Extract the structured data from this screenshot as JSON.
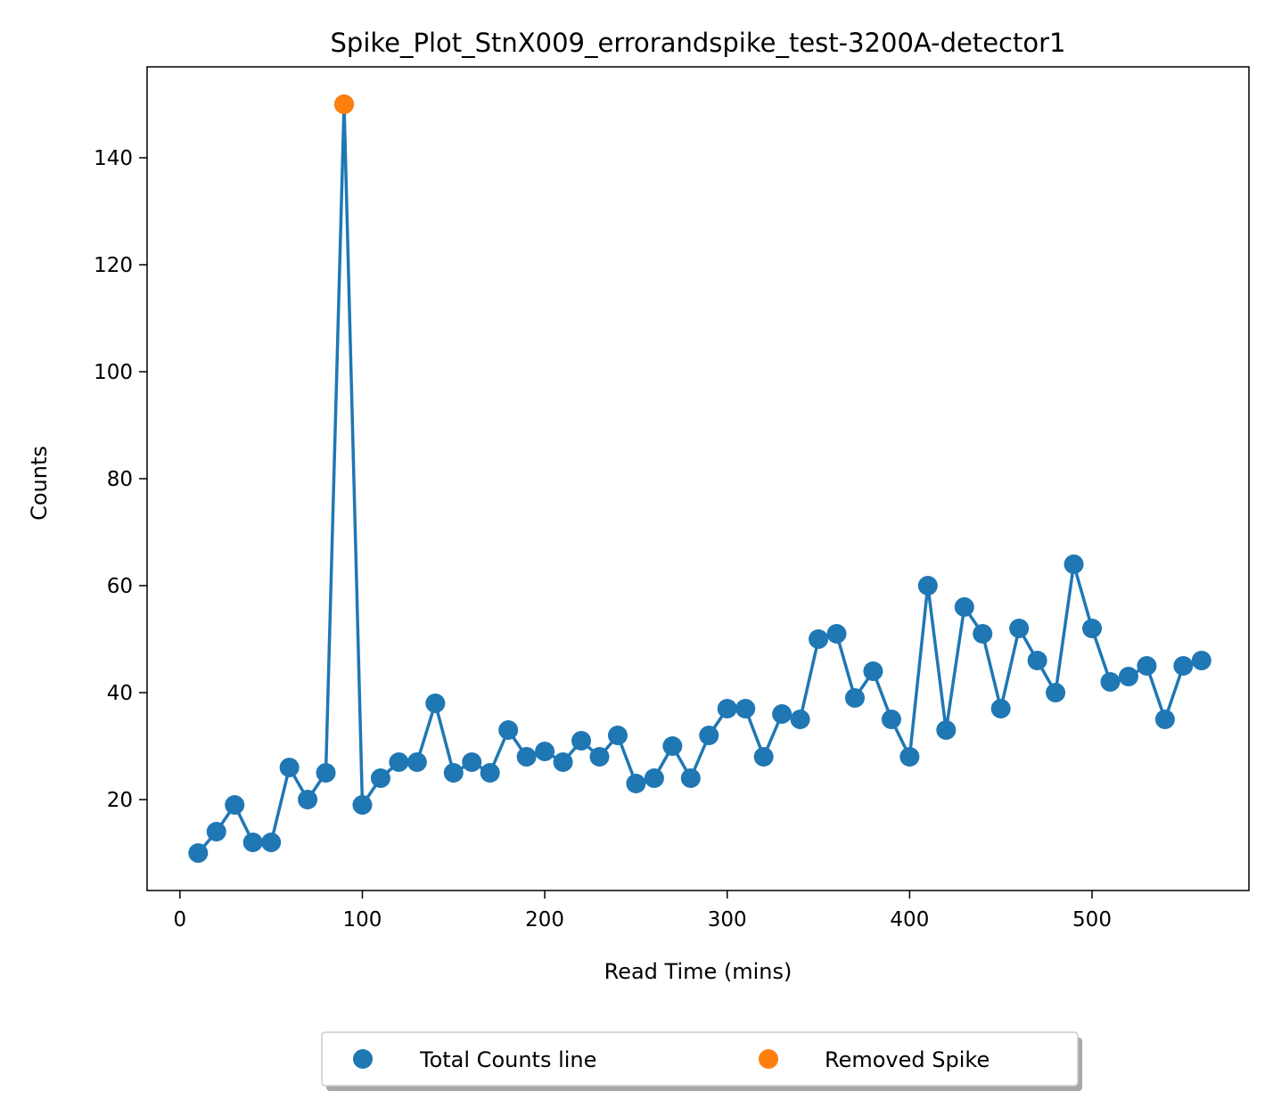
{
  "chart_data": {
    "type": "line",
    "title": "Spike_Plot_StnX009_errorandspike_test-3200A-detector1",
    "xlabel": "Read Time (mins)",
    "ylabel": "Counts",
    "xlim": [
      -18,
      586
    ],
    "ylim": [
      3,
      157
    ],
    "xticks": [
      0,
      100,
      200,
      300,
      400,
      500
    ],
    "yticks": [
      20,
      40,
      60,
      80,
      100,
      120,
      140
    ],
    "grid": false,
    "legend_position": "bottom-center",
    "series": [
      {
        "name": "Total Counts line",
        "color": "#1f77b4",
        "marker": "circle",
        "line": true,
        "x": [
          10,
          20,
          30,
          40,
          50,
          60,
          70,
          80,
          90,
          100,
          110,
          120,
          130,
          140,
          150,
          160,
          170,
          180,
          190,
          200,
          210,
          220,
          230,
          240,
          250,
          260,
          270,
          280,
          290,
          300,
          310,
          320,
          330,
          340,
          350,
          360,
          370,
          380,
          390,
          400,
          410,
          420,
          430,
          440,
          450,
          460,
          470,
          480,
          490,
          500,
          510,
          520,
          530,
          540,
          550,
          560
        ],
        "y": [
          10,
          14,
          19,
          12,
          12,
          26,
          20,
          25,
          150,
          19,
          24,
          27,
          27,
          38,
          25,
          27,
          25,
          33,
          28,
          29,
          27,
          31,
          28,
          32,
          23,
          24,
          30,
          24,
          32,
          37,
          37,
          28,
          36,
          35,
          50,
          51,
          39,
          44,
          35,
          28,
          60,
          33,
          56,
          51,
          37,
          52,
          46,
          40,
          64,
          52,
          42,
          43,
          45,
          35,
          45,
          46
        ]
      },
      {
        "name": "Removed Spike",
        "color": "#ff7f0e",
        "marker": "circle",
        "line": false,
        "x": [
          90
        ],
        "y": [
          150
        ]
      }
    ]
  }
}
